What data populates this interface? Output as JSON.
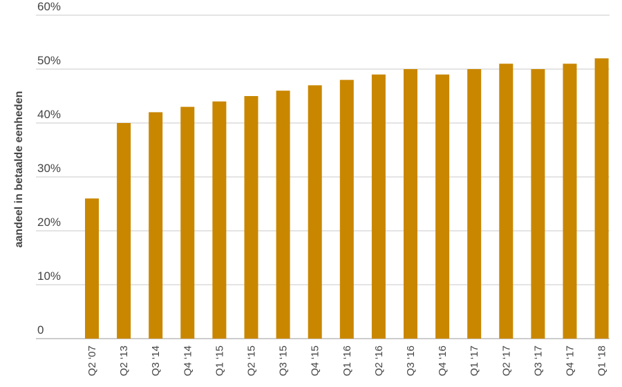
{
  "chart_data": {
    "type": "bar",
    "categories": [
      "Q2 ‘07",
      "Q2 ‘13",
      "Q3 ‘14",
      "Q4 ‘14",
      "Q1 ‘15",
      "Q2 ‘15",
      "Q3 ‘15",
      "Q4 ‘15",
      "Q1 ‘16",
      "Q2 ‘16",
      "Q3 ‘16",
      "Q4 ‘16",
      "Q1 ‘17",
      "Q2 ‘17",
      "Q3 ‘17",
      "Q4 ‘17",
      "Q1 ‘18"
    ],
    "values": [
      26,
      40,
      42,
      43,
      44,
      45,
      46,
      47,
      48,
      49,
      50,
      49,
      50,
      51,
      50,
      51,
      52
    ],
    "title": "",
    "xlabel": "",
    "ylabel": "aandeel in betaalde eenheden",
    "ylim": [
      0,
      60
    ],
    "yticks": [
      0,
      10,
      20,
      30,
      40,
      50,
      60
    ],
    "ytick_labels": [
      "0",
      "10%",
      "20%",
      "30%",
      "40%",
      "50%",
      "60%"
    ],
    "grid": true,
    "bar_color": "#c98700"
  }
}
